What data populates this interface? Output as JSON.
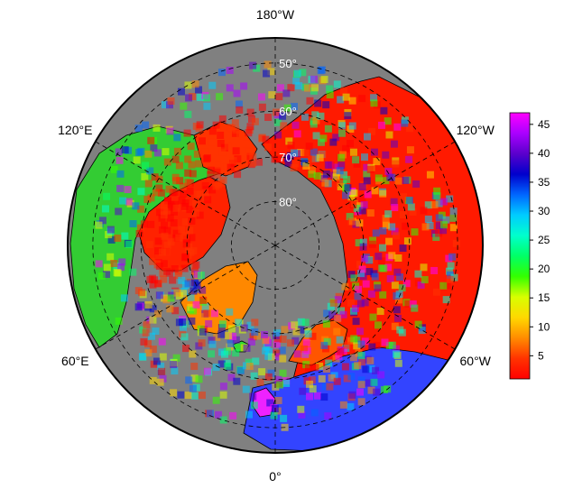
{
  "map": {
    "projection": "north-polar-stereographic",
    "background_ocean_color": "#808080",
    "land_outline_color": "#000000",
    "graticule_style": "dashed",
    "longitude_labels": [
      {
        "text": "180°W",
        "lon": 180
      },
      {
        "text": "120°E",
        "lon": 120
      },
      {
        "text": "60°E",
        "lon": 60
      },
      {
        "text": "0°",
        "lon": 0
      },
      {
        "text": "60°W",
        "lon": -60
      },
      {
        "text": "120°W",
        "lon": -120
      }
    ],
    "latitude_labels": [
      {
        "text": "50°",
        "lat": 50
      },
      {
        "text": "60°",
        "lat": 60
      },
      {
        "text": "70°",
        "lat": 70
      },
      {
        "text": "80°",
        "lat": 80
      }
    ],
    "latitude_range": [
      45,
      90
    ]
  },
  "colorbar": {
    "colormap": "rainbow (red → yellow → green → cyan → blue → purple → magenta)",
    "range": [
      1,
      47
    ],
    "ticks": [
      "5",
      "10",
      "15",
      "20",
      "25",
      "30",
      "35",
      "40",
      "45"
    ],
    "tick_values": [
      5,
      10,
      15,
      20,
      25,
      30,
      35,
      40,
      45
    ],
    "stops": [
      "#ff0000",
      "#ff3300",
      "#ff8c00",
      "#ffd800",
      "#d8ff00",
      "#33ff00",
      "#00ff66",
      "#00ffcc",
      "#00ccff",
      "#0066ff",
      "#0000cc",
      "#5a00cc",
      "#aa00ff",
      "#ff00ff"
    ]
  }
}
